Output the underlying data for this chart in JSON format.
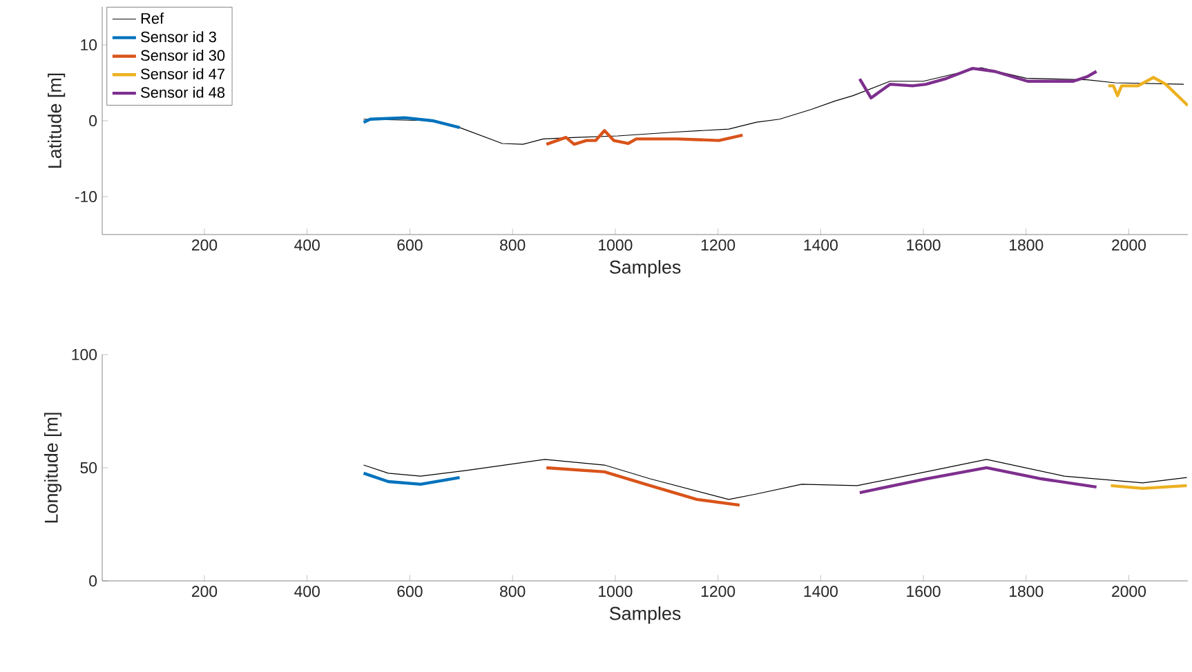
{
  "chart_data": [
    {
      "type": "line",
      "xlabel": "Samples",
      "ylabel": "Latitude [m]",
      "xlim": [
        1,
        2115
      ],
      "ylim": [
        -15,
        15
      ],
      "xticks": [
        200,
        400,
        600,
        800,
        1000,
        1200,
        1400,
        1600,
        1800,
        2000
      ],
      "yticks": [
        -10,
        0,
        10
      ],
      "legend": "top left",
      "grid": false,
      "marker": "none",
      "line_style": "solid",
      "series": [
        {
          "name": "Ref",
          "color": "#000000",
          "x": [
            510,
            558,
            590,
            644,
            697,
            780,
            820,
            860,
            925,
            1005,
            1115,
            1221,
            1275,
            1320,
            1382,
            1428,
            1463,
            1535,
            1600,
            1712,
            1800,
            1919,
            1973,
            2107
          ],
          "values": [
            0.2,
            null,
            null,
            0.0,
            -0.9,
            -3.0,
            -3.1,
            -2.4,
            -2.2,
            -2.0,
            -1.5,
            -1.1,
            -0.2,
            0.2,
            1.5,
            2.6,
            3.3,
            5.2,
            5.2,
            7.0,
            5.6,
            5.4,
            5.0,
            4.8
          ]
        },
        {
          "name": "Sensor id 3",
          "color": "#0072bd",
          "x": [
            510,
            523,
            590,
            644,
            697
          ],
          "values": [
            -0.2,
            0.2,
            0.4,
            0.0,
            -0.9
          ]
        },
        {
          "name": "Sensor id 30",
          "color": "#d95319",
          "x": [
            866,
            904,
            920,
            944,
            962,
            979,
            997,
            1025,
            1041,
            1121,
            1202,
            1248
          ],
          "values": [
            -3.1,
            -2.2,
            -3.1,
            -2.6,
            -2.6,
            -1.3,
            -2.6,
            -3.0,
            -2.4,
            -2.4,
            -2.6,
            -1.9
          ]
        },
        {
          "name": "Sensor id 47",
          "color": "#edb120",
          "x": [
            1960,
            1970,
            1978,
            1986,
            2018,
            2048,
            2072,
            2115
          ],
          "values": [
            4.6,
            4.6,
            3.3,
            4.6,
            4.6,
            5.7,
            4.8,
            2.0
          ]
        },
        {
          "name": "Sensor id 48",
          "color": "#7e2f8e",
          "x": [
            1476,
            1498,
            1535,
            1579,
            1605,
            1642,
            1696,
            1739,
            1803,
            1892,
            1919,
            1937
          ],
          "values": [
            5.5,
            3.0,
            4.8,
            4.6,
            4.8,
            5.5,
            6.9,
            6.5,
            5.2,
            5.2,
            5.8,
            6.5
          ]
        }
      ]
    },
    {
      "type": "line",
      "xlabel": "Samples",
      "ylabel": "Longitude [m]",
      "xlim": [
        1,
        2115
      ],
      "ylim": [
        0,
        100
      ],
      "xticks": [
        200,
        400,
        600,
        800,
        1000,
        1200,
        1400,
        1600,
        1800,
        2000
      ],
      "yticks": [
        0,
        50,
        100
      ],
      "legend": false,
      "grid": false,
      "marker": "none",
      "line_style": "solid",
      "series": [
        {
          "color": "#000000",
          "x": [
            510,
            558,
            621,
            710,
            863,
            979,
            1068,
            1221,
            1275,
            1363,
            1471,
            1605,
            1723,
            1874,
            2027,
            2113
          ],
          "values": [
            51.2,
            47.6,
            46.3,
            48.8,
            53.7,
            51.2,
            45.1,
            36.0,
            38.4,
            42.7,
            42.1,
            48.2,
            53.7,
            46.3,
            43.3,
            45.7
          ]
        },
        {
          "color": "#0072bd",
          "x": [
            510,
            558,
            621,
            697
          ],
          "values": [
            47.6,
            43.9,
            42.7,
            45.7
          ]
        },
        {
          "color": "#d95319",
          "x": [
            866,
            979,
            1068,
            1159,
            1242
          ],
          "values": [
            50.0,
            48.2,
            42.1,
            36.0,
            33.5
          ]
        },
        {
          "color": "#edb120",
          "x": [
            1965,
            2027,
            2113
          ],
          "values": [
            42.1,
            40.9,
            42.1
          ]
        },
        {
          "color": "#7e2f8e",
          "x": [
            1476,
            1605,
            1723,
            1830,
            1937
          ],
          "values": [
            39.0,
            45.1,
            50.0,
            45.1,
            41.5
          ]
        }
      ]
    }
  ]
}
